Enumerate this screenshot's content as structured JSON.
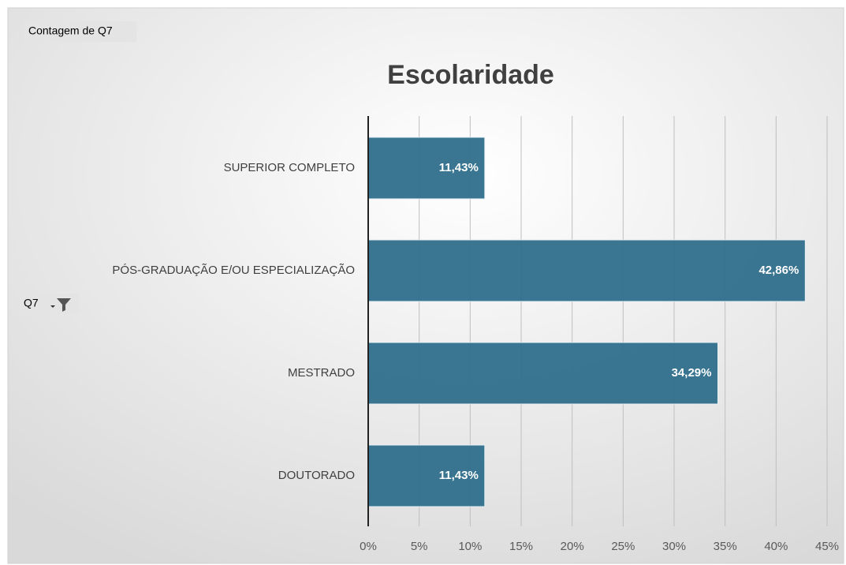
{
  "pivot_buttons": {
    "value_field": "Contagem de Q7",
    "axis_field": "Q7"
  },
  "chart_data": {
    "type": "barh",
    "title": "Escolaridade",
    "categories": [
      "SUPERIOR COMPLETO",
      "PÓS-GRADUAÇÃO E/OU ESPECIALIZAÇÃO",
      "MESTRADO",
      "DOUTORADO"
    ],
    "values": [
      11.43,
      42.86,
      34.29,
      11.43
    ],
    "value_labels": [
      "11,43%",
      "42,86%",
      "34,29%",
      "11,43%"
    ],
    "color": "#2f6f8c",
    "xlim": [
      0,
      45
    ],
    "xticks": [
      {
        "value": 0,
        "label": "0%"
      },
      {
        "value": 5,
        "label": "5%"
      },
      {
        "value": 10,
        "label": "10%"
      },
      {
        "value": 15,
        "label": "15%"
      },
      {
        "value": 20,
        "label": "20%"
      },
      {
        "value": 25,
        "label": "25%"
      },
      {
        "value": 30,
        "label": "30%"
      },
      {
        "value": 35,
        "label": "35%"
      },
      {
        "value": 40,
        "label": "40%"
      },
      {
        "value": 45,
        "label": "45%"
      }
    ],
    "grid": true
  }
}
